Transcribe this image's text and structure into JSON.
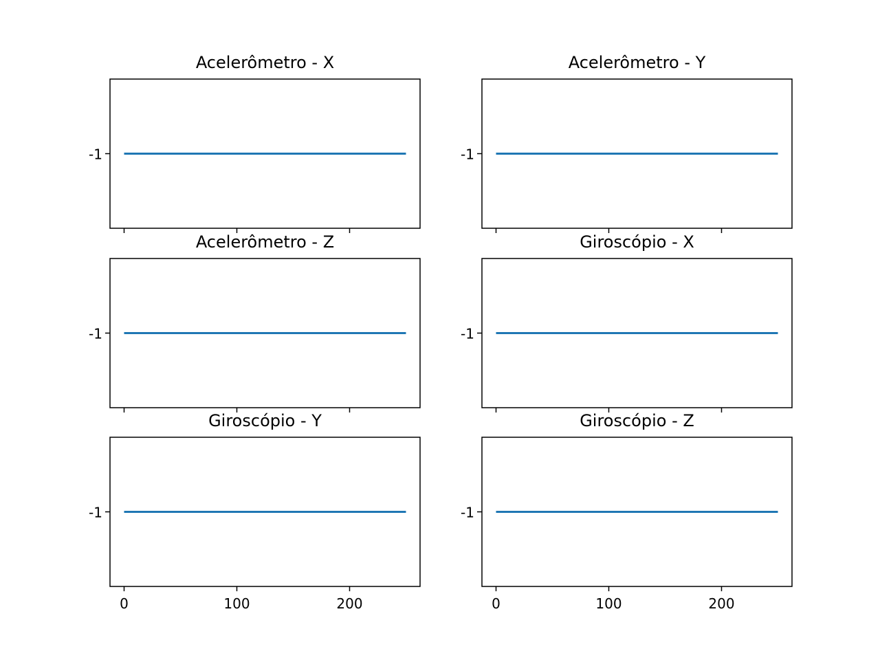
{
  "chart_data": [
    {
      "type": "line",
      "title": "Acelerômetro - X",
      "x": [
        0,
        250
      ],
      "series": [
        {
          "values": [
            -1,
            -1
          ]
        }
      ],
      "xlim": [
        -12.5,
        262.5
      ],
      "ylim": [
        -1.055,
        -0.945
      ],
      "xticks": [
        0,
        100,
        200
      ],
      "xtick_labels": [],
      "yticks": [
        -1
      ],
      "ytick_labels": [
        "-1"
      ]
    },
    {
      "type": "line",
      "title": "Acelerômetro - Y",
      "x": [
        0,
        250
      ],
      "series": [
        {
          "values": [
            -1,
            -1
          ]
        }
      ],
      "xlim": [
        -12.5,
        262.5
      ],
      "ylim": [
        -1.055,
        -0.945
      ],
      "xticks": [
        0,
        100,
        200
      ],
      "xtick_labels": [],
      "yticks": [
        -1
      ],
      "ytick_labels": [
        "-1"
      ]
    },
    {
      "type": "line",
      "title": "Acelerômetro - Z",
      "x": [
        0,
        250
      ],
      "series": [
        {
          "values": [
            -1,
            -1
          ]
        }
      ],
      "xlim": [
        -12.5,
        262.5
      ],
      "ylim": [
        -1.055,
        -0.945
      ],
      "xticks": [
        0,
        100,
        200
      ],
      "xtick_labels": [],
      "yticks": [
        -1
      ],
      "ytick_labels": [
        "-1"
      ]
    },
    {
      "type": "line",
      "title": "Giroscópio - X",
      "x": [
        0,
        250
      ],
      "series": [
        {
          "values": [
            -1,
            -1
          ]
        }
      ],
      "xlim": [
        -12.5,
        262.5
      ],
      "ylim": [
        -1.055,
        -0.945
      ],
      "xticks": [
        0,
        100,
        200
      ],
      "xtick_labels": [],
      "yticks": [
        -1
      ],
      "ytick_labels": [
        "-1"
      ]
    },
    {
      "type": "line",
      "title": "Giroscópio - Y",
      "x": [
        0,
        250
      ],
      "series": [
        {
          "values": [
            -1,
            -1
          ]
        }
      ],
      "xlim": [
        -12.5,
        262.5
      ],
      "ylim": [
        -1.055,
        -0.945
      ],
      "xticks": [
        0,
        100,
        200
      ],
      "xtick_labels": [
        "0",
        "100",
        "200"
      ],
      "yticks": [
        -1
      ],
      "ytick_labels": [
        "-1"
      ]
    },
    {
      "type": "line",
      "title": "Giroscópio - Z",
      "x": [
        0,
        250
      ],
      "series": [
        {
          "values": [
            -1,
            -1
          ]
        }
      ],
      "xlim": [
        -12.5,
        262.5
      ],
      "ylim": [
        -1.055,
        -0.945
      ],
      "xticks": [
        0,
        100,
        200
      ],
      "xtick_labels": [
        "0",
        "100",
        "200"
      ],
      "yticks": [
        -1
      ],
      "ytick_labels": [
        "-1"
      ]
    }
  ],
  "colors": {
    "series": "#1f77b4",
    "axes": "#000000"
  },
  "grid": false
}
